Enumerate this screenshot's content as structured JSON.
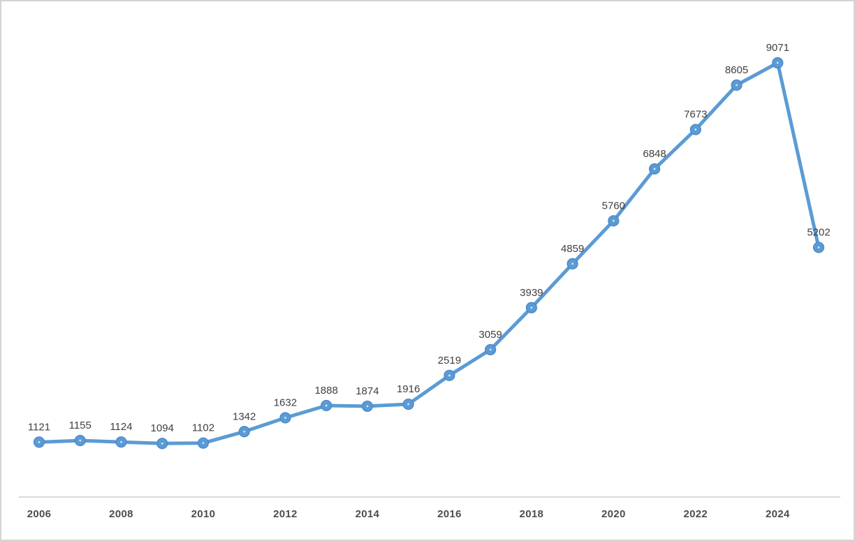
{
  "chart_data": {
    "type": "line",
    "title": "",
    "xlabel": "",
    "ylabel": "",
    "x": [
      2006,
      2007,
      2008,
      2009,
      2010,
      2011,
      2012,
      2013,
      2014,
      2015,
      2016,
      2017,
      2018,
      2019,
      2020,
      2021,
      2022,
      2023,
      2024,
      2025
    ],
    "series": [
      {
        "name": "series-1",
        "values": [
          1121,
          1155,
          1124,
          1094,
          1102,
          1342,
          1632,
          1888,
          1874,
          1916,
          2519,
          3059,
          3939,
          4859,
          5760,
          6848,
          7673,
          8605,
          9071,
          5202
        ]
      }
    ],
    "x_tick_labels": [
      "2006",
      "2008",
      "2010",
      "2012",
      "2014",
      "2016",
      "2018",
      "2020",
      "2022",
      "2024"
    ],
    "data_labels_visible": true,
    "ylim": [
      0,
      9500
    ],
    "grid": false,
    "legend_position": "none",
    "colors": {
      "line": "#5b9bd5",
      "marker_fill": "#5b9bd5",
      "marker_border": "#4a86c5",
      "marker_center_dot": "#d6e7f5",
      "data_label": "#3f3f3f",
      "axis_tick_label": "#4d4d4d",
      "axis_line": "#d9d9d9",
      "background": "#ffffff",
      "frame_border": "#d4d4d4"
    }
  }
}
